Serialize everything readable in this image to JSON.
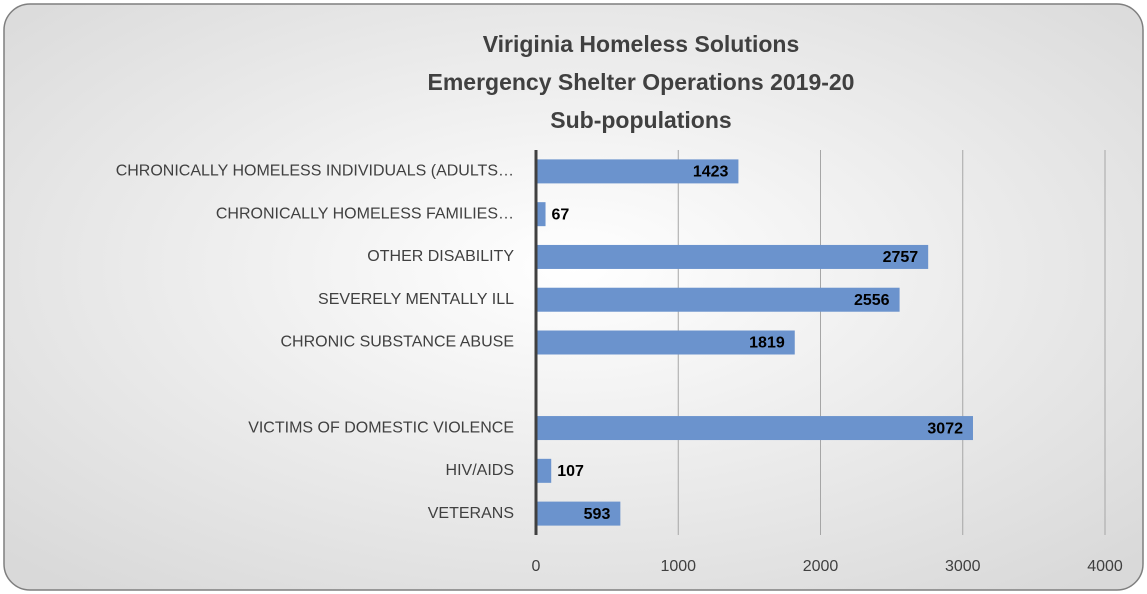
{
  "chart_data": {
    "type": "barh",
    "title": [
      "Viriginia Homeless Solutions",
      "Emergency Shelter Operations 2019-20",
      "Sub-populations"
    ],
    "categories": [
      "CHRONICALLY HOMELESS INDIVIDUALS (ADULTS…",
      "CHRONICALLY HOMELESS FAMILIES…",
      "OTHER DISABILITY",
      "SEVERELY MENTALLY ILL",
      "CHRONIC SUBSTANCE ABUSE",
      null,
      "VICTIMS OF DOMESTIC VIOLENCE",
      "HIV/AIDS",
      "VETERANS"
    ],
    "values": [
      1423,
      67,
      2757,
      2556,
      1819,
      null,
      3072,
      107,
      593
    ],
    "color": "#6b93cd",
    "xlim": [
      0,
      4000
    ],
    "xticks": [
      0,
      1000,
      2000,
      3000,
      4000
    ],
    "grid": true
  }
}
